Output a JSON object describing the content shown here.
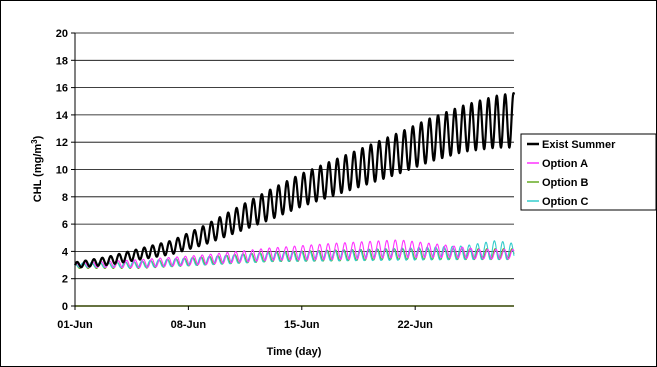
{
  "chart_data": {
    "type": "line",
    "title": "",
    "xlabel": "Time (day)",
    "ylabel_main": "CHL (mg/m",
    "ylabel_sup": "3",
    "ylabel_close": ")",
    "ylim": [
      0,
      20
    ],
    "yticks": [
      0,
      2,
      4,
      6,
      8,
      10,
      12,
      14,
      16,
      18,
      20
    ],
    "xlim_day": [
      1,
      28.1
    ],
    "xticks": [
      {
        "day": 1,
        "label": "01-Jun"
      },
      {
        "day": 8,
        "label": "08-Jun"
      },
      {
        "day": 15,
        "label": "15-Jun"
      },
      {
        "day": 22,
        "label": "22-Jun"
      }
    ],
    "grid": "horizontal",
    "legend_position": "right",
    "oscillation": "diurnal cycle, ~2 peaks per day",
    "series": [
      {
        "name": "Exist Summer",
        "color": "#000000",
        "width": 2.2,
        "x_day": [
          1,
          3,
          5,
          7,
          9,
          11,
          13,
          15,
          17,
          19,
          21,
          23,
          25,
          27,
          28
        ],
        "center": [
          3.0,
          3.3,
          3.8,
          4.3,
          5.2,
          6.3,
          7.4,
          8.5,
          9.4,
          10.3,
          11.2,
          12.2,
          13.0,
          13.5,
          13.6
        ],
        "amplitude": [
          0.2,
          0.3,
          0.4,
          0.5,
          0.7,
          0.9,
          1.1,
          1.2,
          1.3,
          1.4,
          1.5,
          1.6,
          1.7,
          1.9,
          2.0
        ]
      },
      {
        "name": "Option A",
        "color": "#ff33ff",
        "width": 1.1,
        "x_day": [
          1,
          5,
          9,
          13,
          17,
          21,
          24,
          26,
          28
        ],
        "center": [
          3.0,
          3.1,
          3.4,
          3.8,
          4.0,
          4.2,
          4.0,
          3.8,
          3.8
        ],
        "amplitude": [
          0.15,
          0.3,
          0.35,
          0.45,
          0.6,
          0.65,
          0.45,
          0.35,
          0.35
        ]
      },
      {
        "name": "Option B",
        "color": "#66aa22",
        "width": 1.1,
        "x_day": [
          1,
          5,
          9,
          13,
          17,
          21,
          28
        ],
        "center": [
          2.9,
          3.0,
          3.3,
          3.6,
          3.7,
          3.8,
          3.8
        ],
        "amplitude": [
          0.15,
          0.25,
          0.3,
          0.35,
          0.4,
          0.4,
          0.4
        ]
      },
      {
        "name": "Option C",
        "color": "#33cccc",
        "width": 1.1,
        "x_day": [
          1,
          5,
          9,
          13,
          17,
          21,
          25,
          27,
          28
        ],
        "center": [
          3.0,
          3.05,
          3.3,
          3.6,
          3.7,
          3.8,
          3.9,
          4.1,
          4.0
        ],
        "amplitude": [
          0.15,
          0.25,
          0.3,
          0.35,
          0.4,
          0.45,
          0.5,
          0.7,
          0.6
        ]
      },
      {
        "name": "",
        "color": "#99cc00",
        "width": 1.5,
        "in_legend": false,
        "constant": 0.0
      }
    ]
  }
}
